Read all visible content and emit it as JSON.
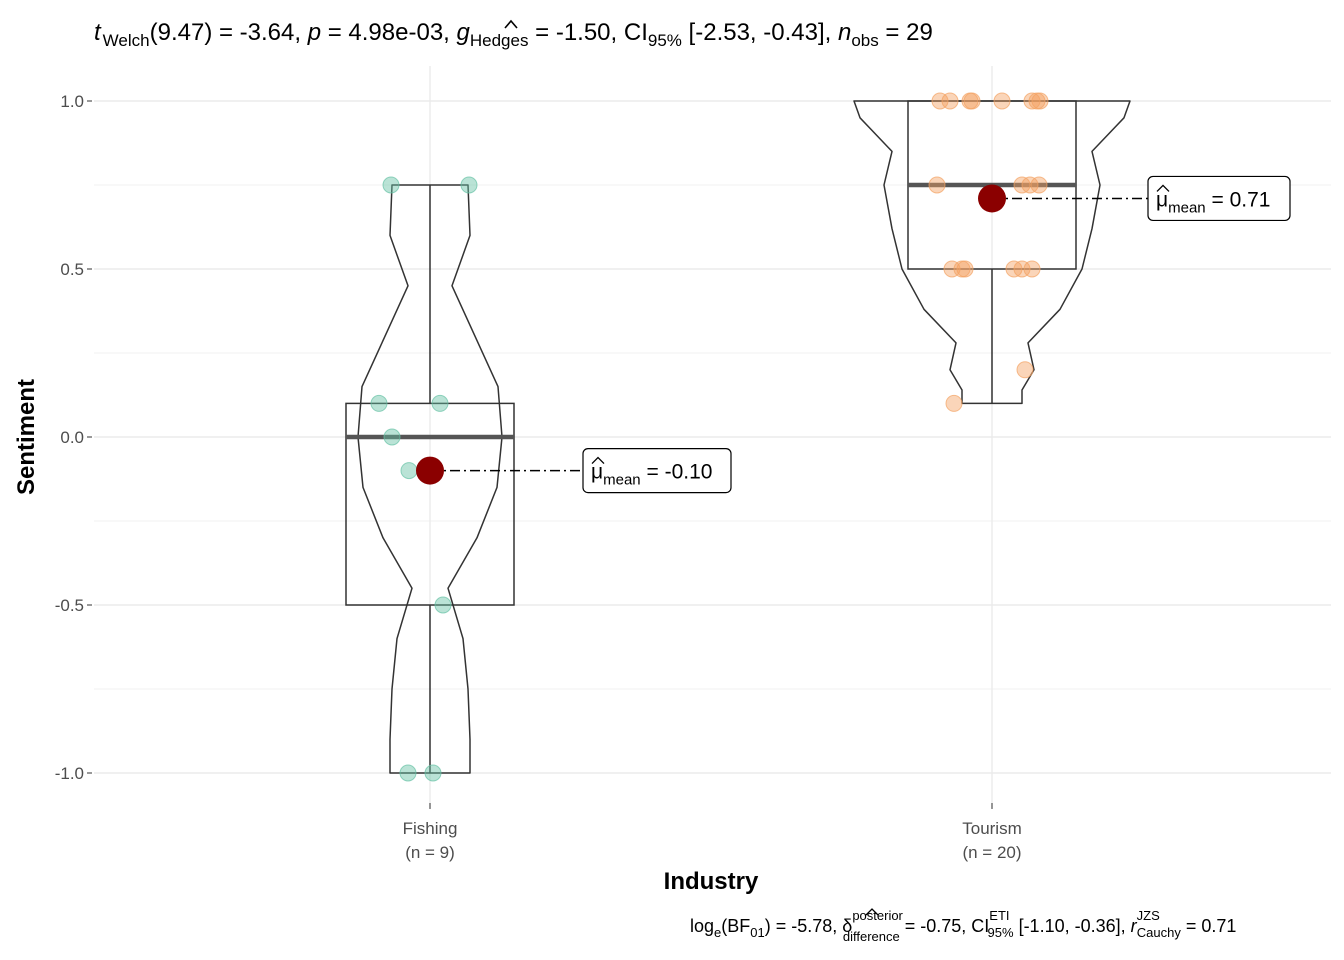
{
  "chart_data": {
    "type": "violin-box",
    "title": "t Welch(9.47) = -3.64, p = 4.98e-03, g Hedges = -1.50, CI95% [-2.53, -0.43], n obs = 29",
    "title_parts": {
      "t_sym": "t",
      "t_sub": "Welch",
      "t_rest": "(9.47) = -3.64, ",
      "p_sym": "p",
      "p_rest": " = 4.98e-03, ",
      "g_sym": "g",
      "g_sub": "Hedges",
      "g_rest": " = -1.50, CI",
      "ci_sub": "95%",
      "ci_rest": " [-2.53, -0.43], ",
      "n_sym": "n",
      "n_sub": "obs",
      "n_rest": " = 29"
    },
    "caption": "loge(BF01) = -5.78, δ posterior difference = -0.75, CI ETI 95% [-1.10, -0.36], r JZS Cauchy = 0.71",
    "caption_parts": {
      "log": "log",
      "log_sub": "e",
      "bf_open": "(BF",
      "bf_sub": "01",
      "bf_rest": ") = -5.78, ",
      "delta": "δ",
      "delta_sup": "posterior",
      "delta_sub": "difference",
      "delta_rest": " = -0.75, CI",
      "ci_sup": "ETI",
      "ci_sub": "95%",
      "ci_rest": " [-1.10, -0.36], ",
      "r": "r",
      "r_sup": "JZS",
      "r_sub": "Cauchy",
      "r_rest": " = 0.71"
    },
    "xlabel": "Industry",
    "ylabel": "Sentiment",
    "ylim": [
      -1.0,
      1.0
    ],
    "yticks": [
      "-1.0",
      "-0.5",
      "0.0",
      "0.5",
      "1.0"
    ],
    "grid": true,
    "groups": [
      {
        "name": "Fishing",
        "n_label": "(n = 9)",
        "color": "#66c2a5",
        "points": [
          0.75,
          0.75,
          0.1,
          0.1,
          0.0,
          -0.1,
          -0.5,
          -1.0,
          -1.0
        ],
        "box": {
          "q1": -0.5,
          "median": 0.0,
          "q3": 0.1,
          "whisker_low": -1.0,
          "whisker_high": 0.75
        },
        "mean": -0.1,
        "mean_label": {
          "mu": "μ",
          "sub": "mean",
          "rest": " = -0.10"
        }
      },
      {
        "name": "Tourism",
        "n_label": "(n = 20)",
        "color": "#f4a263",
        "points": [
          1.0,
          1.0,
          1.0,
          1.0,
          1.0,
          1.0,
          1.0,
          1.0,
          0.75,
          0.75,
          0.75,
          0.75,
          0.5,
          0.5,
          0.5,
          0.5,
          0.5,
          0.5,
          0.2,
          0.1
        ],
        "box": {
          "q1": 0.5,
          "median": 0.75,
          "q3": 1.0,
          "whisker_low": 0.1,
          "whisker_high": 1.0
        },
        "mean": 0.71,
        "mean_label": {
          "mu": "μ",
          "sub": "mean",
          "rest": " = 0.71"
        }
      }
    ],
    "mean_point_color": "#8b0000"
  }
}
